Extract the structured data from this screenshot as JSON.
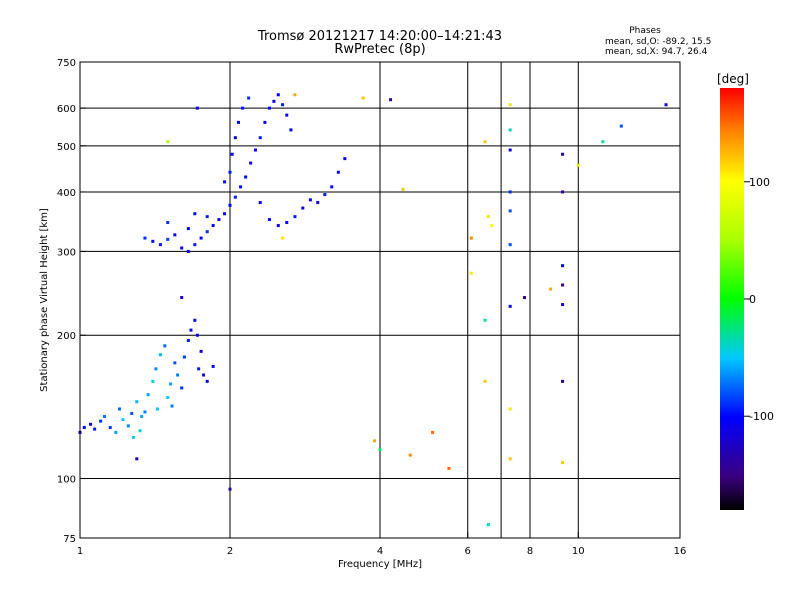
{
  "chart_data": {
    "type": "scatter",
    "title": "Tromsø 20121217 14:20:00–14:21:43",
    "subtitle": "RwPretec (8p)",
    "stats": {
      "title": "Phases",
      "line_o": "mean, sd,O: -89.2, 15.5",
      "line_x": "mean, sd,X:  94.7, 26.4"
    },
    "xlabel": "Frequency [MHz]",
    "ylabel": "Stationary phase Virtual Height [km]",
    "x_scale": "log",
    "y_scale": "log",
    "xlim": [
      1,
      16
    ],
    "ylim": [
      75,
      750
    ],
    "x_ticks": [
      1,
      2,
      4,
      6,
      8,
      10,
      16
    ],
    "x_tick_labels": [
      "1",
      "2",
      "4",
      "6",
      "8",
      "10",
      "16"
    ],
    "x_grid": [
      2,
      4,
      6,
      7,
      8,
      10
    ],
    "y_ticks": [
      75,
      100,
      200,
      300,
      400,
      500,
      600,
      750
    ],
    "y_tick_labels": [
      "75",
      "100",
      "200",
      "300",
      "400",
      "500",
      "600",
      "750"
    ],
    "y_grid": [
      100,
      200,
      300,
      400,
      500,
      600
    ],
    "colorbar": {
      "label": "[deg]",
      "range": [
        -180,
        180
      ],
      "ticks": [
        100,
        0,
        -100
      ],
      "tick_labels": [
        "100",
        "0",
        "-100"
      ]
    },
    "series": [
      {
        "points": [
          [
            1.0,
            125,
            -110
          ],
          [
            1.02,
            128,
            -100
          ],
          [
            1.05,
            130,
            -105
          ],
          [
            1.07,
            127,
            -95
          ],
          [
            1.1,
            132,
            -90
          ],
          [
            1.12,
            135,
            -70
          ],
          [
            1.15,
            128,
            -85
          ],
          [
            1.18,
            125,
            -60
          ],
          [
            1.2,
            140,
            -75
          ],
          [
            1.22,
            133,
            -50
          ],
          [
            1.25,
            129,
            -65
          ],
          [
            1.27,
            137,
            -80
          ],
          [
            1.3,
            145,
            -55
          ],
          [
            1.32,
            126,
            -40
          ],
          [
            1.35,
            138,
            -70
          ],
          [
            1.37,
            150,
            -60
          ],
          [
            1.4,
            160,
            -45
          ],
          [
            1.42,
            170,
            -65
          ],
          [
            1.45,
            182,
            -55
          ],
          [
            1.48,
            190,
            -75
          ],
          [
            1.5,
            148,
            -50
          ],
          [
            1.52,
            158,
            -60
          ],
          [
            1.55,
            175,
            -80
          ],
          [
            1.57,
            165,
            -70
          ],
          [
            1.6,
            155,
            -90
          ],
          [
            1.62,
            180,
            -85
          ],
          [
            1.65,
            195,
            -95
          ],
          [
            1.67,
            205,
            -105
          ],
          [
            1.7,
            215,
            -110
          ],
          [
            1.72,
            200,
            -100
          ],
          [
            1.75,
            185,
            -115
          ],
          [
            1.77,
            165,
            -120
          ],
          [
            1.8,
            160,
            -110
          ],
          [
            1.85,
            172,
            -100
          ],
          [
            1.6,
            240,
            -120
          ],
          [
            1.28,
            122,
            -45
          ],
          [
            1.33,
            135,
            -60
          ],
          [
            1.43,
            140,
            -50
          ],
          [
            1.53,
            142,
            -70
          ],
          [
            1.73,
            170,
            -95
          ]
        ]
      },
      {
        "points": [
          [
            1.35,
            320,
            -90
          ],
          [
            1.4,
            315,
            -100
          ],
          [
            1.45,
            310,
            -95
          ],
          [
            1.5,
            318,
            -85
          ],
          [
            1.55,
            325,
            -105
          ],
          [
            1.6,
            305,
            -100
          ],
          [
            1.65,
            300,
            -110
          ],
          [
            1.7,
            310,
            -95
          ],
          [
            1.75,
            320,
            -100
          ],
          [
            1.8,
            330,
            -90
          ],
          [
            1.85,
            340,
            -100
          ],
          [
            1.9,
            350,
            -110
          ],
          [
            1.95,
            360,
            -105
          ],
          [
            2.0,
            375,
            -100
          ],
          [
            2.05,
            390,
            -95
          ],
          [
            2.1,
            410,
            -105
          ],
          [
            2.15,
            430,
            -100
          ],
          [
            2.2,
            460,
            -110
          ],
          [
            2.25,
            490,
            -100
          ],
          [
            2.3,
            520,
            -95
          ],
          [
            2.35,
            560,
            -105
          ],
          [
            2.4,
            600,
            -100
          ],
          [
            2.45,
            620,
            -110
          ],
          [
            2.5,
            640,
            -100
          ],
          [
            2.55,
            610,
            -95
          ],
          [
            2.6,
            580,
            -105
          ],
          [
            2.65,
            540,
            -100
          ],
          [
            2.18,
            630,
            -90
          ],
          [
            2.12,
            600,
            -95
          ],
          [
            2.08,
            560,
            -100
          ],
          [
            2.05,
            520,
            -105
          ],
          [
            2.02,
            480,
            -100
          ],
          [
            2.0,
            440,
            -95
          ],
          [
            1.95,
            420,
            -100
          ],
          [
            2.3,
            380,
            -105
          ],
          [
            2.4,
            350,
            -100
          ],
          [
            2.5,
            340,
            -110
          ],
          [
            2.6,
            345,
            -100
          ],
          [
            2.7,
            355,
            -95
          ],
          [
            2.8,
            370,
            -105
          ],
          [
            2.9,
            385,
            -100
          ],
          [
            3.0,
            380,
            -110
          ],
          [
            3.1,
            395,
            -95
          ],
          [
            3.2,
            410,
            -100
          ],
          [
            3.3,
            440,
            -105
          ],
          [
            3.4,
            470,
            -100
          ],
          [
            1.5,
            345,
            -90
          ],
          [
            1.65,
            335,
            -100
          ],
          [
            1.7,
            360,
            -105
          ],
          [
            1.8,
            355,
            -95
          ]
        ]
      },
      {
        "points": [
          [
            1.3,
            110,
            -130
          ],
          [
            1.5,
            510,
            50
          ],
          [
            1.72,
            600,
            -110
          ],
          [
            2.0,
            95,
            -140
          ],
          [
            2.55,
            320,
            110
          ],
          [
            2.7,
            640,
            130
          ],
          [
            3.7,
            630,
            120
          ],
          [
            3.9,
            120,
            130
          ],
          [
            4.0,
            115,
            -20
          ],
          [
            4.2,
            625,
            -140
          ],
          [
            4.45,
            405,
            120
          ],
          [
            4.6,
            112,
            140
          ],
          [
            5.1,
            125,
            150
          ],
          [
            5.5,
            105,
            150
          ],
          [
            6.1,
            320,
            140
          ],
          [
            6.1,
            270,
            110
          ],
          [
            6.5,
            215,
            -30
          ],
          [
            6.5,
            160,
            120
          ],
          [
            6.5,
            510,
            120
          ],
          [
            6.6,
            80,
            -40
          ],
          [
            6.6,
            355,
            110
          ],
          [
            6.7,
            340,
            100
          ],
          [
            7.3,
            610,
            110
          ],
          [
            7.3,
            540,
            -40
          ],
          [
            7.3,
            490,
            -110
          ],
          [
            7.3,
            400,
            -90
          ],
          [
            7.3,
            365,
            -80
          ],
          [
            7.3,
            310,
            -80
          ],
          [
            7.3,
            230,
            -110
          ],
          [
            7.3,
            140,
            110
          ],
          [
            7.3,
            110,
            120
          ],
          [
            7.8,
            240,
            -150
          ],
          [
            8.8,
            250,
            130
          ],
          [
            9.3,
            480,
            -140
          ],
          [
            9.3,
            400,
            -140
          ],
          [
            9.3,
            280,
            -100
          ],
          [
            9.3,
            255,
            -150
          ],
          [
            9.3,
            232,
            -110
          ],
          [
            9.3,
            160,
            -140
          ],
          [
            9.3,
            108,
            120
          ],
          [
            10.0,
            455,
            110
          ],
          [
            11.2,
            510,
            -30
          ],
          [
            12.2,
            550,
            -80
          ],
          [
            15.0,
            610,
            -120
          ]
        ]
      }
    ]
  }
}
